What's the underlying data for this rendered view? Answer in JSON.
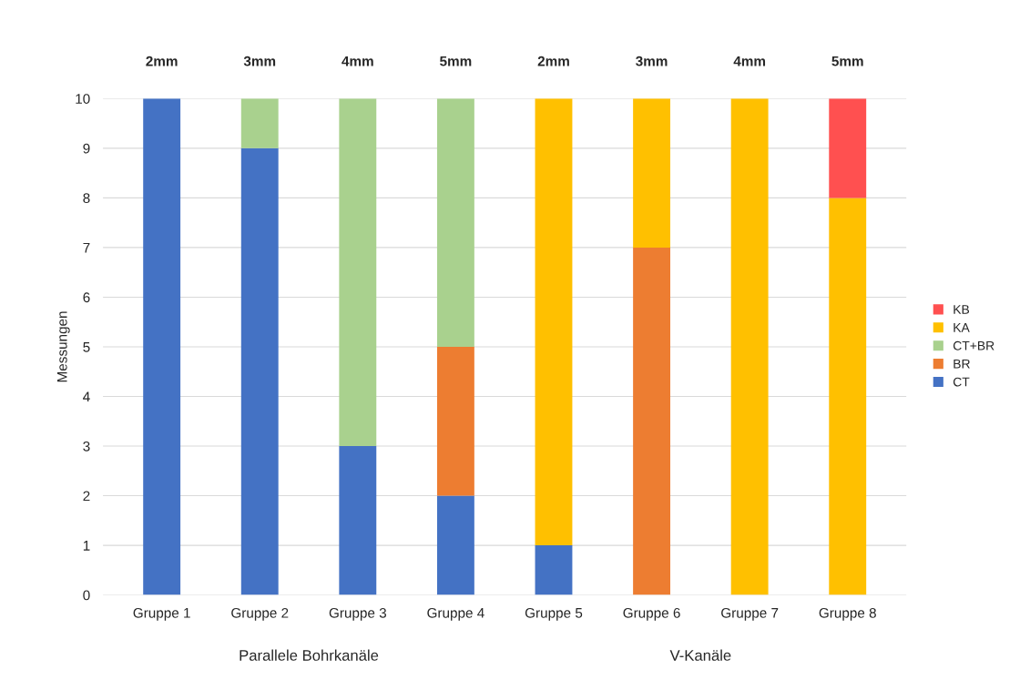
{
  "chart_data": {
    "type": "bar",
    "stacked": true,
    "ylabel": "Messungen",
    "categories": [
      "Gruppe 1",
      "Gruppe 2",
      "Gruppe 3",
      "Gruppe 4",
      "Gruppe 5",
      "Gruppe 6",
      "Gruppe 7",
      "Gruppe 8"
    ],
    "series": [
      {
        "name": "CT",
        "color": "#4472c4",
        "values": [
          10,
          9,
          3,
          2,
          1,
          0,
          0,
          0
        ]
      },
      {
        "name": "BR",
        "color": "#ed7d31",
        "values": [
          0,
          0,
          0,
          3,
          0,
          7,
          0,
          0
        ]
      },
      {
        "name": "CT+BR",
        "color": "#a9d18e",
        "values": [
          0,
          1,
          7,
          5,
          0,
          0,
          0,
          0
        ]
      },
      {
        "name": "KA",
        "color": "#ffc000",
        "values": [
          0,
          0,
          0,
          0,
          9,
          3,
          10,
          8
        ]
      },
      {
        "name": "KB",
        "color": "#ff5050",
        "values": [
          0,
          0,
          0,
          0,
          0,
          0,
          0,
          2
        ]
      }
    ],
    "ylim": [
      0,
      10
    ],
    "yticks": [
      0,
      1,
      2,
      3,
      4,
      5,
      6,
      7,
      8,
      9,
      10
    ],
    "grid": "y",
    "legend": "right",
    "annotations": [
      "2mm",
      "3mm",
      "4mm",
      "5mm",
      "2mm",
      "3mm",
      "4mm",
      "5mm",
      "Parallele Bohrkanäle",
      "V-Kanäle"
    ]
  }
}
